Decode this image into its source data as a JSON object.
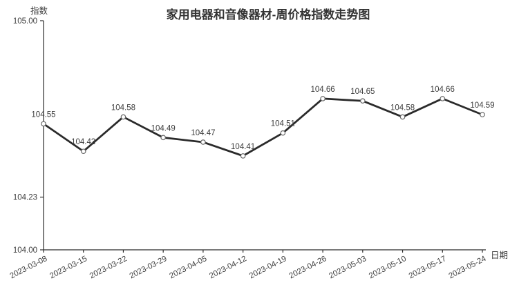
{
  "chart_data": {
    "type": "line",
    "title": "家用电器和音像器材-周价格指数走势图",
    "ylabel": "指数",
    "xlabel": "日期",
    "categories": [
      "2023-03-08",
      "2023-03-15",
      "2023-03-22",
      "2023-03-29",
      "2023-04-05",
      "2023-04-12",
      "2023-04-19",
      "2023-04-26",
      "2023-05-03",
      "2023-05-10",
      "2023-05-17",
      "2023-05-24"
    ],
    "values": [
      104.55,
      104.43,
      104.58,
      104.49,
      104.47,
      104.41,
      104.51,
      104.66,
      104.65,
      104.58,
      104.66,
      104.59
    ],
    "value_labels": [
      "104.55",
      "104.43",
      "104.58",
      "104.49",
      "104.47",
      "104.41",
      "104.51",
      "104.66",
      "104.65",
      "104.58",
      "104.66",
      "104.59"
    ],
    "ylim": [
      104.0,
      105.0
    ],
    "yticks": [
      104.0,
      104.23,
      105.0
    ],
    "ytick_labels": [
      "104.00",
      "104.23",
      "105.00"
    ],
    "grid": false,
    "legend": null,
    "colors": {
      "line": "#2b2b2b",
      "marker_fill": "#ffffff",
      "marker_stroke": "#666666",
      "axis": "#2b2b2b",
      "text": "#3d3d3d",
      "title": "#333333"
    }
  }
}
